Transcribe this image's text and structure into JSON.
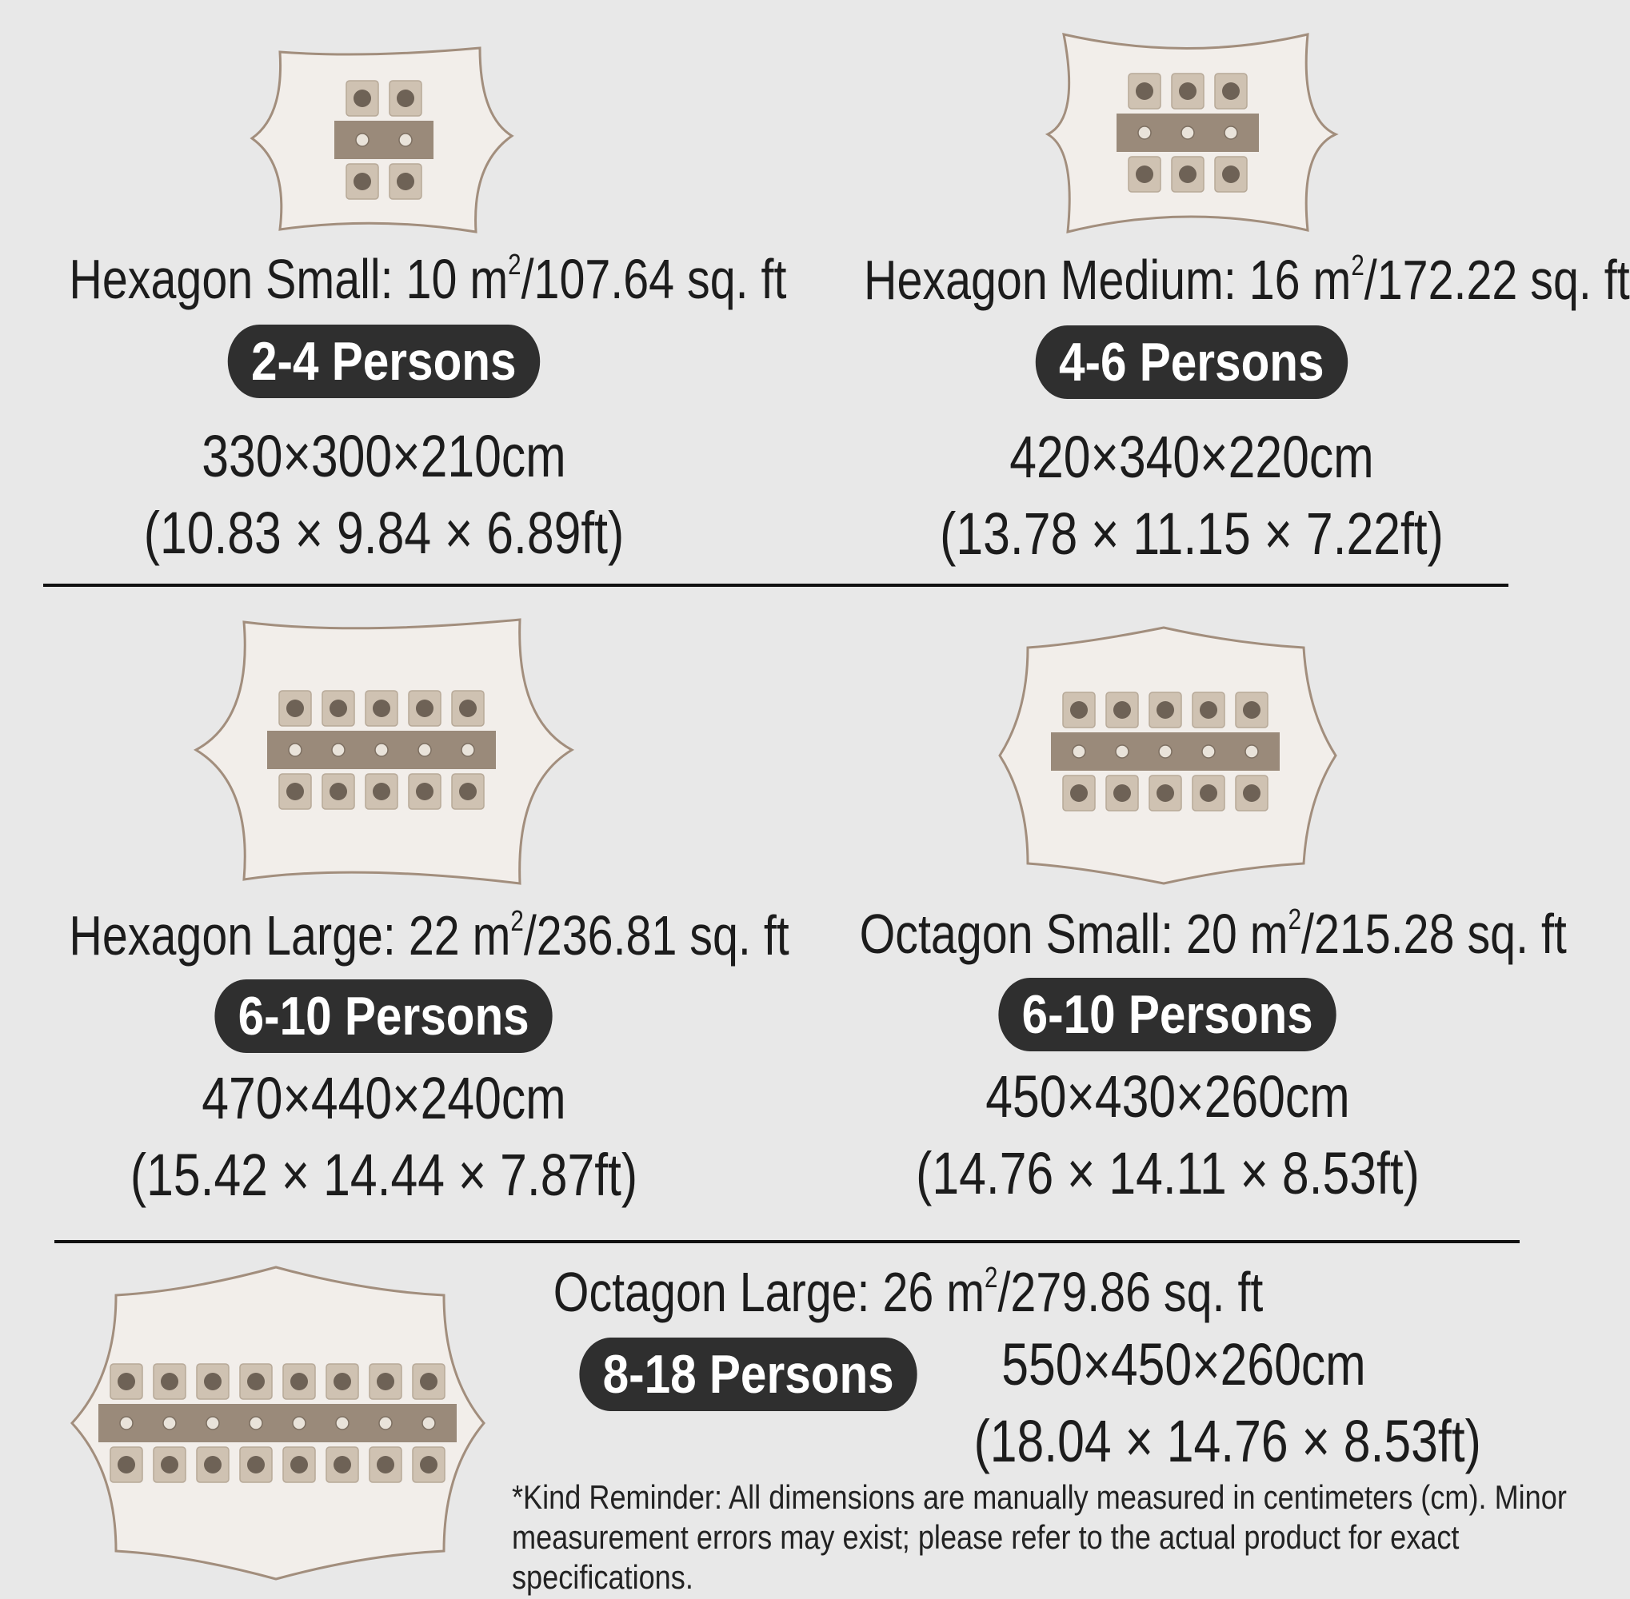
{
  "products": [
    {
      "id": "hexagon-small",
      "title_prefix": "Hexagon Small: 10 m",
      "title_sup": "2",
      "title_suffix": "/107.64 sq. ft",
      "persons": "2-4 Persons",
      "dims_cm": "330×300×210cm",
      "dims_ft": "(10.83 × 9.84 × 6.89ft)",
      "seats_per_side": 2
    },
    {
      "id": "hexagon-medium",
      "title_prefix": "Hexagon Medium: 16 m",
      "title_sup": "2",
      "title_suffix": "/172.22 sq. ft",
      "persons": "4-6 Persons",
      "dims_cm": "420×340×220cm",
      "dims_ft": "(13.78 × 11.15 × 7.22ft)",
      "seats_per_side": 3
    },
    {
      "id": "hexagon-large",
      "title_prefix": "Hexagon Large: 22 m",
      "title_sup": "2",
      "title_suffix": "/236.81 sq. ft",
      "persons": "6-10 Persons",
      "dims_cm": "470×440×240cm",
      "dims_ft": "(15.42 × 14.44 × 7.87ft)",
      "seats_per_side": 5
    },
    {
      "id": "octagon-small",
      "title_prefix": "Octagon Small: 20 m",
      "title_sup": "2",
      "title_suffix": "/215.28 sq. ft",
      "persons": "6-10 Persons",
      "dims_cm": "450×430×260cm",
      "dims_ft": "(14.76 × 14.11 × 8.53ft)",
      "seats_per_side": 5
    },
    {
      "id": "octagon-large",
      "title_prefix": "Octagon Large: 26 m",
      "title_sup": "2",
      "title_suffix": "/279.86 sq. ft",
      "persons": "8-18 Persons",
      "dims_cm": "550×450×260cm",
      "dims_ft": "(18.04 × 14.76 × 8.53ft)",
      "seats_per_side": 8
    }
  ],
  "note": "*Kind Reminder: All dimensions are manually measured in centimeters (cm). Minor measurement errors may exist; please refer to the actual product for exact specifications.",
  "colors": {
    "background": "#e8e8e8",
    "pill": "#2f2f2f",
    "tent_fill": "#f2eeea",
    "tent_stroke": "#a28e7d",
    "table": "#9a8a7a",
    "chair": "#cfc2b2"
  }
}
